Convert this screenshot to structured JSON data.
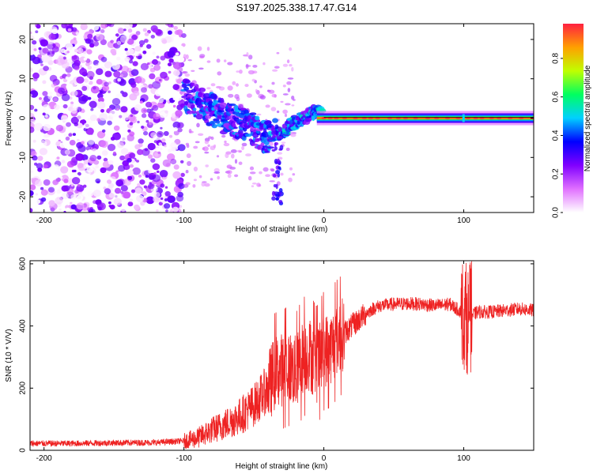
{
  "title": "S197.2025.338.17.47.G14",
  "chart_data": [
    {
      "type": "heatmap",
      "name": "spectrogram",
      "xlabel": "Height of straight line (km)",
      "ylabel": "Frequency (Hz)",
      "xlim": [
        -210,
        150
      ],
      "ylim": [
        -24,
        24
      ],
      "xticks": [
        -200,
        -100,
        0,
        100
      ],
      "yticks": [
        -20,
        -10,
        0,
        10,
        20
      ],
      "colorbar": {
        "label": "Normalized spectral amplitude",
        "range": [
          0,
          0.98
        ],
        "ticks": [
          "0.0",
          "0.2",
          "0.4",
          "0.6",
          "0.8"
        ],
        "tick_values": [
          0.0,
          0.2,
          0.4,
          0.6,
          0.8
        ],
        "colors": [
          "#ffffff",
          "#e070ff",
          "#8000ff",
          "#0000ff",
          "#00d0ff",
          "#00ff60",
          "#c0ff00",
          "#ffa000",
          "#ff2040"
        ]
      },
      "features": {
        "noise_region_x": [
          -210,
          -100
        ],
        "tone_track": [
          {
            "x": -100,
            "f": 6,
            "amp": 0.3
          },
          {
            "x": -90,
            "f": 4,
            "amp": 0.3
          },
          {
            "x": -80,
            "f": 2,
            "amp": 0.3
          },
          {
            "x": -70,
            "f": 0,
            "amp": 0.3
          },
          {
            "x": -60,
            "f": -1,
            "amp": 0.3
          },
          {
            "x": -50,
            "f": -3,
            "amp": 0.3
          },
          {
            "x": -40,
            "f": -5,
            "amp": 0.3
          },
          {
            "x": -30,
            "f": -4,
            "amp": 0.35
          },
          {
            "x": -25,
            "f": -2,
            "amp": 0.35
          },
          {
            "x": -20,
            "f": -1,
            "amp": 0.35
          },
          {
            "x": -10,
            "f": 1,
            "amp": 0.35
          },
          {
            "x": -5,
            "f": 2,
            "amp": 0.3
          },
          {
            "x": 0,
            "f": 0.5,
            "amp": 0.9
          },
          {
            "x": 50,
            "f": 0,
            "amp": 0.9
          },
          {
            "x": 100,
            "f": 0,
            "amp": 0.9
          },
          {
            "x": 150,
            "f": 0,
            "amp": 0.9
          }
        ]
      }
    },
    {
      "type": "line",
      "name": "snr",
      "xlabel": "Height of straight line (km)",
      "ylabel": "SNR (10 * V/V)",
      "xlim": [
        -210,
        150
      ],
      "ylim": [
        0,
        610
      ],
      "xticks": [
        -200,
        -100,
        0,
        100
      ],
      "yticks": [
        0,
        200,
        400,
        600
      ],
      "color": "#ee2222",
      "series": [
        {
          "name": "SNR",
          "x": [
            -210,
            -180,
            -150,
            -120,
            -100,
            -90,
            -80,
            -70,
            -60,
            -50,
            -40,
            -35,
            -30,
            -25,
            -20,
            -15,
            -10,
            -5,
            0,
            5,
            10,
            15,
            20,
            25,
            30,
            35,
            40,
            50,
            60,
            70,
            80,
            90,
            95,
            100,
            103,
            106,
            110,
            120,
            130,
            140,
            150
          ],
          "values": [
            22,
            22,
            24,
            25,
            30,
            40,
            65,
            85,
            110,
            145,
            200,
            250,
            260,
            270,
            250,
            300,
            310,
            270,
            320,
            330,
            360,
            380,
            400,
            420,
            440,
            455,
            465,
            470,
            472,
            470,
            465,
            470,
            455,
            440,
            420,
            435,
            445,
            445,
            450,
            455,
            450
          ]
        }
      ]
    }
  ]
}
